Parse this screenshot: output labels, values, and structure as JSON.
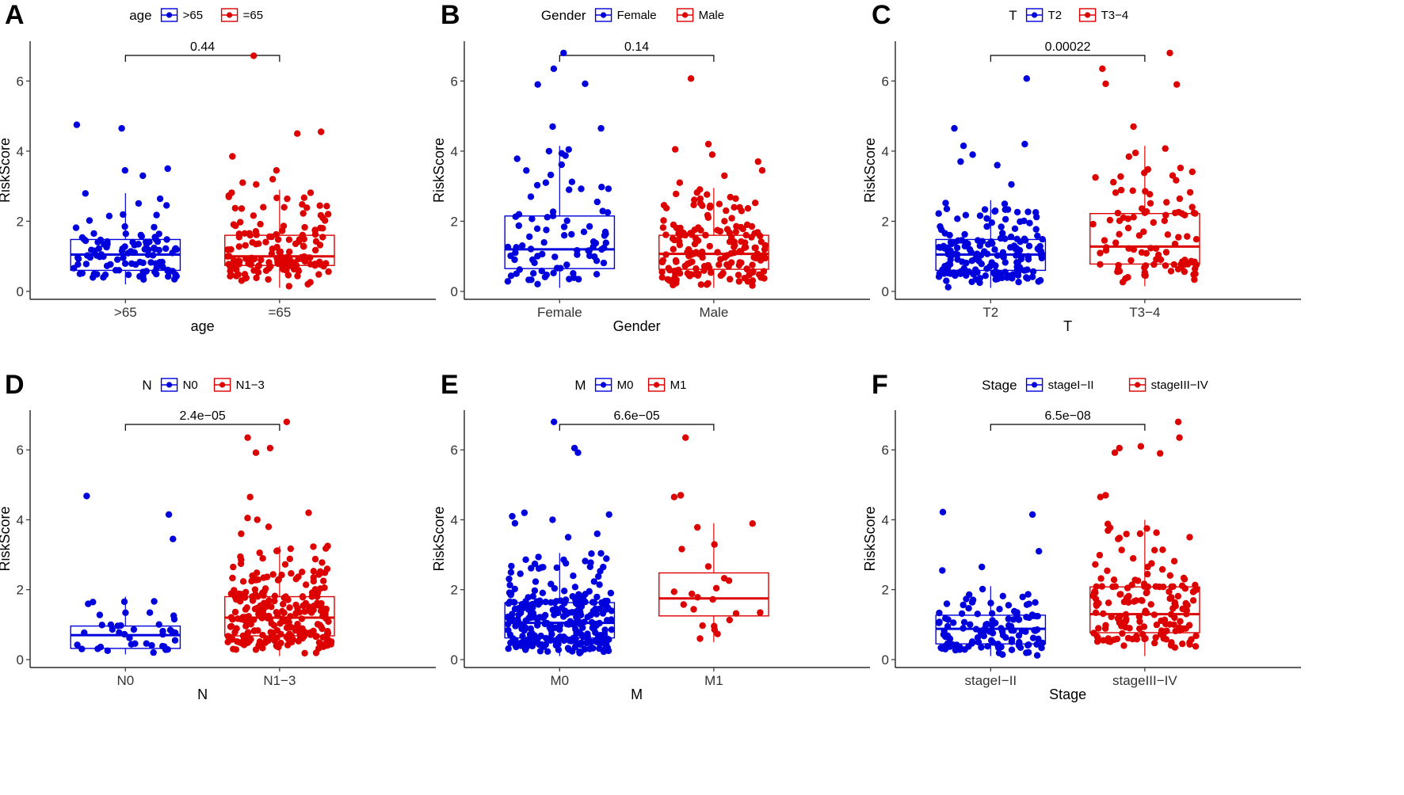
{
  "colors": {
    "group1": "#0000dd",
    "group2": "#dd0000",
    "axis": "#000000",
    "tick": "#333333"
  },
  "chart_data": [
    {
      "panel": "A",
      "type": "box",
      "legend_title": "age",
      "legend_position": "top",
      "categories": [
        ">65",
        "=65"
      ],
      "xlabel": "age",
      "ylabel": "RiskScore",
      "ylim": [
        0,
        7
      ],
      "yticks": [
        0,
        2,
        4,
        6
      ],
      "p_value": "0.44",
      "boxes": [
        {
          "q1": 0.6,
          "median": 1.05,
          "q3": 1.48,
          "whisker_low": 0.2,
          "whisker_high": 2.8,
          "n": 110,
          "outliers": [
            3.3,
            3.45,
            3.5,
            4.65,
            4.75
          ]
        },
        {
          "q1": 0.74,
          "median": 1.0,
          "q3": 1.6,
          "whisker_low": 0.1,
          "whisker_high": 2.9,
          "n": 160,
          "outliers": [
            3.05,
            3.1,
            3.2,
            3.45,
            3.85,
            4.5,
            4.55,
            6.72
          ]
        }
      ]
    },
    {
      "panel": "B",
      "type": "box",
      "legend_title": "Gender",
      "legend_position": "top",
      "categories": [
        "Female",
        "Male"
      ],
      "xlabel": "Gender",
      "ylabel": "RiskScore",
      "ylim": [
        0,
        7
      ],
      "yticks": [
        0,
        2,
        4,
        6
      ],
      "p_value": "0.14",
      "boxes": [
        {
          "q1": 0.65,
          "median": 1.2,
          "q3": 2.15,
          "whisker_low": 0.1,
          "whisker_high": 4.15,
          "n": 85,
          "outliers": [
            4.65,
            4.7,
            5.9,
            5.92,
            6.35,
            6.8
          ]
        },
        {
          "q1": 0.63,
          "median": 1.07,
          "q3": 1.6,
          "whisker_low": 0.1,
          "whisker_high": 2.95,
          "n": 180,
          "outliers": [
            3.1,
            3.3,
            3.45,
            3.7,
            3.9,
            4.05,
            4.2,
            6.07
          ]
        }
      ]
    },
    {
      "panel": "C",
      "type": "box",
      "legend_title": "T",
      "legend_position": "top",
      "categories": [
        "T2",
        "T3−4"
      ],
      "xlabel": "T",
      "ylabel": "RiskScore",
      "ylim": [
        0,
        7
      ],
      "yticks": [
        0,
        2,
        4,
        6
      ],
      "p_value": "0.00022",
      "boxes": [
        {
          "q1": 0.6,
          "median": 1.05,
          "q3": 1.48,
          "whisker_low": 0.1,
          "whisker_high": 2.6,
          "n": 175,
          "outliers": [
            3.05,
            3.6,
            3.7,
            3.9,
            4.15,
            4.2,
            4.65,
            6.07
          ]
        },
        {
          "q1": 0.78,
          "median": 1.28,
          "q3": 2.22,
          "whisker_low": 0.15,
          "whisker_high": 4.15,
          "n": 100,
          "outliers": [
            4.7,
            5.9,
            5.92,
            6.35,
            6.8
          ]
        }
      ]
    },
    {
      "panel": "D",
      "type": "box",
      "legend_title": "N",
      "legend_position": "top",
      "categories": [
        "N0",
        "N1−3"
      ],
      "xlabel": "N",
      "ylabel": "RiskScore",
      "ylim": [
        0,
        7
      ],
      "yticks": [
        0,
        2,
        4,
        6
      ],
      "p_value": "2.4e−05",
      "boxes": [
        {
          "q1": 0.32,
          "median": 0.7,
          "q3": 0.96,
          "whisker_low": 0.15,
          "whisker_high": 1.8,
          "n": 40,
          "outliers": [
            3.45,
            4.15,
            4.68
          ]
        },
        {
          "q1": 0.68,
          "median": 1.2,
          "q3": 1.8,
          "whisker_low": 0.1,
          "whisker_high": 3.25,
          "n": 260,
          "outliers": [
            3.6,
            3.8,
            4.0,
            4.05,
            4.2,
            4.65,
            5.92,
            6.05,
            6.35,
            6.8
          ]
        }
      ]
    },
    {
      "panel": "E",
      "type": "box",
      "legend_title": "M",
      "legend_position": "top",
      "categories": [
        "M0",
        "M1"
      ],
      "xlabel": "M",
      "ylabel": "RiskScore",
      "ylim": [
        0,
        7
      ],
      "yticks": [
        0,
        2,
        4,
        6
      ],
      "p_value": "6.6e−05",
      "boxes": [
        {
          "q1": 0.62,
          "median": 1.05,
          "q3": 1.63,
          "whisker_low": 0.1,
          "whisker_high": 3.05,
          "n": 280,
          "outliers": [
            3.5,
            3.6,
            3.9,
            4.0,
            4.1,
            4.15,
            4.2,
            5.92,
            6.05,
            6.8
          ]
        },
        {
          "q1": 1.25,
          "median": 1.75,
          "q3": 2.48,
          "whisker_low": 0.5,
          "whisker_high": 3.9,
          "n": 22,
          "outliers": [
            4.65,
            4.7,
            6.35
          ]
        }
      ]
    },
    {
      "panel": "F",
      "type": "box",
      "legend_title": "Stage",
      "legend_position": "top",
      "categories": [
        "stageI−II",
        "stageIII−IV"
      ],
      "xlabel": "Stage",
      "ylabel": "RiskScore",
      "ylim": [
        0,
        7
      ],
      "yticks": [
        0,
        2,
        4,
        6
      ],
      "p_value": "6.5e−08",
      "boxes": [
        {
          "q1": 0.45,
          "median": 0.88,
          "q3": 1.27,
          "whisker_low": 0.1,
          "whisker_high": 2.1,
          "n": 120,
          "outliers": [
            2.55,
            2.65,
            3.1,
            4.15,
            4.22
          ]
        },
        {
          "q1": 0.77,
          "median": 1.3,
          "q3": 2.08,
          "whisker_low": 0.1,
          "whisker_high": 4.0,
          "n": 170,
          "outliers": [
            4.65,
            4.7,
            5.9,
            5.92,
            6.05,
            6.1,
            6.35,
            6.8
          ]
        }
      ]
    }
  ]
}
